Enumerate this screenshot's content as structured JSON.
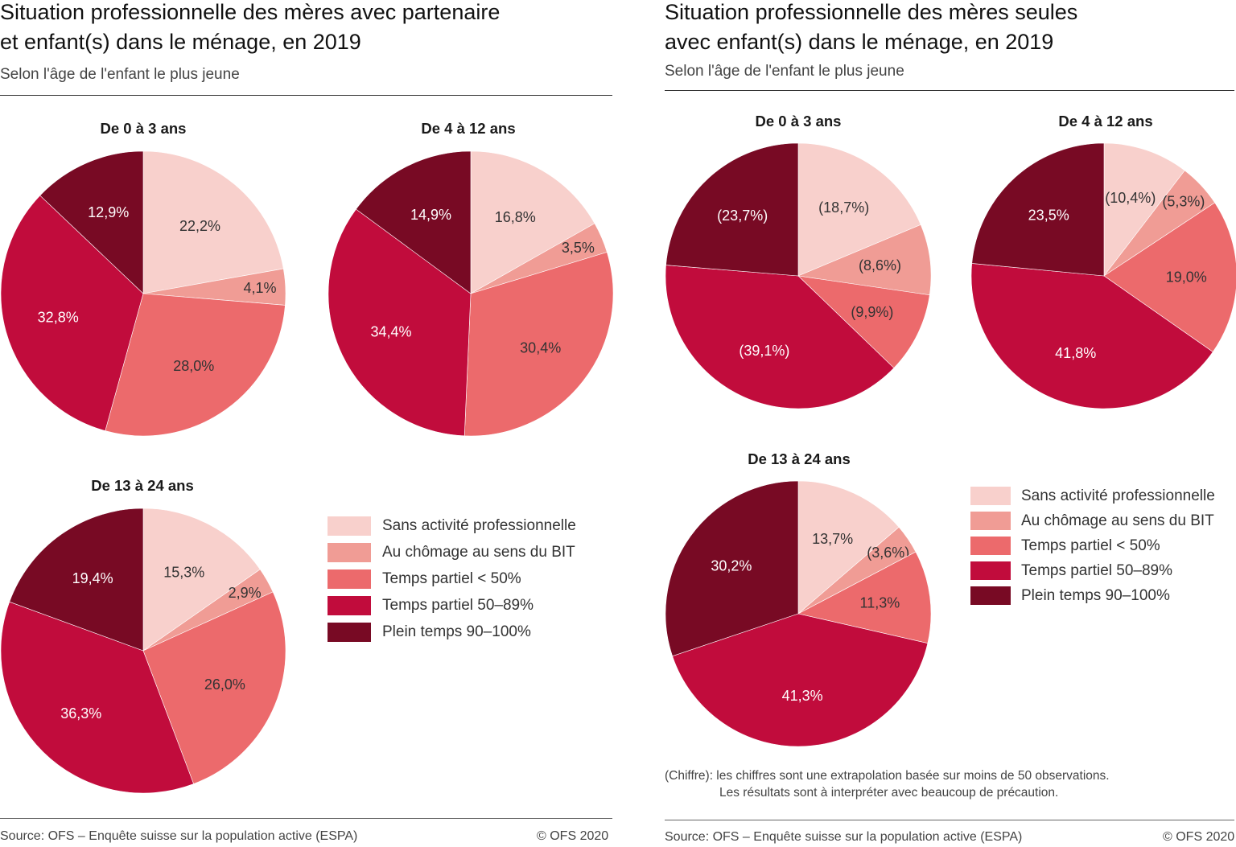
{
  "left_panel": {
    "title_line1": "Situation professionnelle des mères avec partenaire",
    "title_line2": "et enfant(s) dans le ménage, en 2019",
    "subtitle": "Selon l'âge de l'enfant le plus jeune",
    "source": "Source: OFS – Enquête suisse sur la population active (ESPA)",
    "copyright": "© OFS 2020"
  },
  "right_panel": {
    "title_line1": "Situation professionnelle des mères seules",
    "title_line2": "avec enfant(s) dans le ménage, en 2019",
    "subtitle": "Selon l'âge de l'enfant le plus jeune",
    "note_line1": "(Chiffre): les chiffres sont une extrapolation basée sur moins de 50 observations.",
    "note_line2": "Les résultats sont à interpréter avec beaucoup de précaution.",
    "source": "Source: OFS – Enquête suisse sur la population active (ESPA)",
    "copyright": "© OFS 2020"
  },
  "legend": [
    {
      "label": "Sans activité professionnelle",
      "color": "#f8d0cc"
    },
    {
      "label": "Au chômage au sens du BIT",
      "color": "#f09c95"
    },
    {
      "label": "Temps partiel < 50%",
      "color": "#ec6a6c"
    },
    {
      "label": "Temps partiel 50–89%",
      "color": "#c10c3c"
    },
    {
      "label": "Plein temps 90–100%",
      "color": "#780a24"
    }
  ],
  "chart_data": [
    {
      "type": "pie",
      "panel": "avec partenaire",
      "title": "De 0 à 3 ans",
      "categories": [
        "Sans activité professionnelle",
        "Au chômage au sens du BIT",
        "Temps partiel < 50%",
        "Temps partiel 50–89%",
        "Plein temps 90–100%"
      ],
      "values": [
        22.2,
        4.1,
        28.0,
        32.8,
        12.9
      ],
      "labels": [
        "22,2%",
        "4,1%",
        "28,0%",
        "32,8%",
        "12,9%"
      ]
    },
    {
      "type": "pie",
      "panel": "avec partenaire",
      "title": "De 4 à 12 ans",
      "categories": [
        "Sans activité professionnelle",
        "Au chômage au sens du BIT",
        "Temps partiel < 50%",
        "Temps partiel 50–89%",
        "Plein temps 90–100%"
      ],
      "values": [
        16.8,
        3.5,
        30.4,
        34.4,
        14.9
      ],
      "labels": [
        "16,8%",
        "3,5%",
        "30,4%",
        "34,4%",
        "14,9%"
      ]
    },
    {
      "type": "pie",
      "panel": "avec partenaire",
      "title": "De 13 à 24 ans",
      "categories": [
        "Sans activité professionnelle",
        "Au chômage au sens du BIT",
        "Temps partiel < 50%",
        "Temps partiel 50–89%",
        "Plein temps 90–100%"
      ],
      "values": [
        15.3,
        2.9,
        26.0,
        36.3,
        19.4
      ],
      "labels": [
        "15,3%",
        "2,9%",
        "26,0%",
        "36,3%",
        "19,4%"
      ]
    },
    {
      "type": "pie",
      "panel": "seules",
      "title": "De 0 à 3 ans",
      "categories": [
        "Sans activité professionnelle",
        "Au chômage au sens du BIT",
        "Temps partiel < 50%",
        "Temps partiel 50–89%",
        "Plein temps 90–100%"
      ],
      "values": [
        18.7,
        8.6,
        9.9,
        39.1,
        23.7
      ],
      "labels": [
        "(18,7%)",
        "(8,6%)",
        "(9,9%)",
        "(39,1%)",
        "(23,7%)"
      ]
    },
    {
      "type": "pie",
      "panel": "seules",
      "title": "De 4 à 12 ans",
      "categories": [
        "Sans activité professionnelle",
        "Au chômage au sens du BIT",
        "Temps partiel < 50%",
        "Temps partiel 50–89%",
        "Plein temps 90–100%"
      ],
      "values": [
        10.4,
        5.3,
        19.0,
        41.8,
        23.5
      ],
      "labels": [
        "(10,4%)",
        "(5,3%)",
        "19,0%",
        "41,8%",
        "23,5%"
      ]
    },
    {
      "type": "pie",
      "panel": "seules",
      "title": "De 13 à 24 ans",
      "categories": [
        "Sans activité professionnelle",
        "Au chômage au sens du BIT",
        "Temps partiel < 50%",
        "Temps partiel 50–89%",
        "Plein temps 90–100%"
      ],
      "values": [
        13.7,
        3.6,
        11.3,
        41.3,
        30.2
      ],
      "labels": [
        "13,7%",
        "(3,6%)",
        "11,3%",
        "41,3%",
        "30,2%"
      ]
    }
  ]
}
